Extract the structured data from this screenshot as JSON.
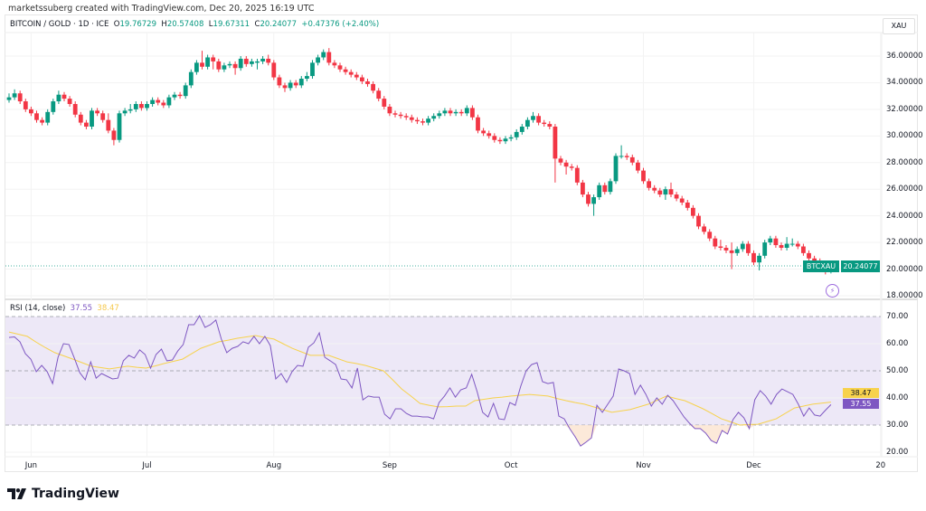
{
  "credit": "marketssuberg created with TradingView.com, Dec 20, 2025 16:19 UTC",
  "legend": {
    "symbol": "BITCOIN / GOLD · 1D · ICE",
    "o_label": "O",
    "o": "19.76729",
    "h_label": "H",
    "h": "20.57408",
    "l_label": "L",
    "l": "19.67311",
    "c_label": "C",
    "c": "20.24077",
    "change": "+0.47376 (+2.40%)"
  },
  "currency_badge": "XAU",
  "last_price": {
    "symbol": "BTCXAU",
    "value": "20.24077"
  },
  "logo_text": "TradingView",
  "colors": {
    "up": "#089981",
    "down": "#f23645",
    "rsi": "#7e57c2",
    "rsi_ma": "#f7d24c",
    "rsi_band": "#ede8f7"
  },
  "icons": [
    "tradingview-logo-icon",
    "lightning-icon"
  ],
  "chart_data": [
    {
      "type": "candlestick",
      "interval": "1D",
      "ylim": [
        18,
        37
      ],
      "y_ticks": [
        "36.00000",
        "34.00000",
        "32.00000",
        "30.00000",
        "28.00000",
        "26.00000",
        "24.00000",
        "22.00000",
        "20.00000",
        "18.00000"
      ],
      "y_tick_values": [
        36,
        34,
        32,
        30,
        28,
        26,
        24,
        22,
        20,
        18
      ],
      "x_ticks": [
        "Jun",
        "Jul",
        "Aug",
        "Sep",
        "Oct",
        "Nov",
        "Dec",
        "20"
      ],
      "x_tick_candle_index": [
        4,
        25,
        48,
        69,
        91,
        115,
        135,
        158
      ],
      "grid": true,
      "ohlc": [
        [
          32.7,
          33.2,
          32.5,
          32.9
        ],
        [
          32.9,
          33.5,
          32.7,
          33.2
        ],
        [
          33.2,
          33.4,
          32.4,
          32.6
        ],
        [
          32.6,
          32.8,
          31.8,
          32.0
        ],
        [
          32.0,
          32.2,
          31.5,
          31.7
        ],
        [
          31.7,
          31.9,
          31.0,
          31.2
        ],
        [
          31.2,
          31.4,
          30.8,
          31.0
        ],
        [
          31.0,
          32.0,
          30.8,
          31.8
        ],
        [
          31.8,
          32.8,
          31.6,
          32.6
        ],
        [
          32.6,
          33.4,
          32.4,
          33.1
        ],
        [
          33.1,
          33.3,
          32.6,
          32.8
        ],
        [
          32.8,
          33.0,
          32.2,
          32.4
        ],
        [
          32.4,
          32.6,
          31.4,
          31.6
        ],
        [
          31.6,
          31.8,
          30.8,
          31.0
        ],
        [
          31.0,
          31.2,
          30.5,
          30.7
        ],
        [
          30.7,
          32.1,
          30.5,
          31.9
        ],
        [
          31.9,
          32.1,
          31.5,
          31.7
        ],
        [
          31.7,
          31.9,
          31.0,
          31.2
        ],
        [
          31.2,
          31.7,
          30.2,
          30.4
        ],
        [
          30.4,
          30.6,
          29.3,
          29.7
        ],
        [
          29.7,
          31.9,
          29.5,
          31.7
        ],
        [
          31.7,
          32.1,
          31.5,
          31.9
        ],
        [
          31.9,
          32.4,
          31.7,
          32.0
        ],
        [
          32.0,
          32.6,
          31.8,
          32.4
        ],
        [
          32.4,
          32.6,
          31.9,
          32.1
        ],
        [
          32.1,
          32.6,
          31.9,
          32.4
        ],
        [
          32.4,
          32.9,
          32.2,
          32.7
        ],
        [
          32.7,
          32.9,
          32.3,
          32.5
        ],
        [
          32.5,
          32.7,
          32.1,
          32.3
        ],
        [
          32.3,
          33.1,
          32.1,
          32.9
        ],
        [
          32.9,
          33.3,
          32.7,
          33.1
        ],
        [
          33.1,
          33.3,
          32.8,
          33.0
        ],
        [
          33.0,
          34.0,
          32.8,
          33.8
        ],
        [
          33.8,
          35.0,
          33.6,
          34.8
        ],
        [
          34.8,
          35.7,
          34.6,
          35.5
        ],
        [
          35.5,
          36.4,
          35.0,
          35.2
        ],
        [
          35.2,
          36.1,
          35.0,
          35.9
        ],
        [
          35.9,
          36.1,
          35.0,
          35.6
        ],
        [
          35.6,
          35.8,
          34.8,
          35.0
        ],
        [
          35.0,
          35.5,
          34.8,
          35.3
        ],
        [
          35.3,
          35.6,
          35.1,
          35.4
        ],
        [
          35.4,
          35.6,
          34.6,
          35.1
        ],
        [
          35.1,
          36.0,
          34.9,
          35.8
        ],
        [
          35.8,
          36.0,
          35.2,
          35.4
        ],
        [
          35.4,
          35.8,
          35.2,
          35.6
        ],
        [
          35.5,
          35.8,
          35.0,
          35.6
        ],
        [
          35.6,
          36.0,
          35.4,
          35.8
        ],
        [
          35.8,
          36.1,
          35.3,
          35.5
        ],
        [
          35.5,
          35.7,
          34.2,
          34.4
        ],
        [
          34.4,
          34.6,
          33.6,
          33.8
        ],
        [
          33.8,
          34.0,
          33.3,
          33.6
        ],
        [
          33.6,
          34.2,
          33.4,
          34.0
        ],
        [
          34.0,
          34.2,
          33.6,
          33.8
        ],
        [
          33.8,
          34.5,
          33.6,
          34.3
        ],
        [
          34.3,
          34.8,
          34.1,
          34.5
        ],
        [
          34.5,
          35.7,
          34.3,
          35.5
        ],
        [
          35.5,
          36.1,
          35.3,
          35.9
        ],
        [
          35.9,
          36.5,
          35.7,
          36.3
        ],
        [
          36.3,
          36.6,
          35.3,
          35.5
        ],
        [
          35.5,
          35.7,
          35.1,
          35.3
        ],
        [
          35.3,
          35.5,
          34.8,
          35.0
        ],
        [
          35.0,
          35.2,
          34.6,
          34.8
        ],
        [
          34.8,
          35.0,
          34.4,
          34.6
        ],
        [
          34.6,
          34.8,
          34.2,
          34.4
        ],
        [
          34.4,
          34.6,
          33.9,
          34.1
        ],
        [
          34.1,
          34.3,
          33.7,
          33.9
        ],
        [
          33.9,
          34.1,
          33.2,
          33.4
        ],
        [
          33.4,
          33.6,
          32.6,
          32.8
        ],
        [
          32.8,
          33.0,
          32.0,
          32.2
        ],
        [
          32.2,
          32.4,
          31.5,
          31.7
        ],
        [
          31.7,
          31.9,
          31.4,
          31.6
        ],
        [
          31.6,
          31.8,
          31.3,
          31.5
        ],
        [
          31.5,
          31.7,
          31.2,
          31.4
        ],
        [
          31.4,
          31.6,
          31.0,
          31.2
        ],
        [
          31.2,
          31.4,
          30.9,
          31.1
        ],
        [
          31.1,
          31.3,
          30.8,
          31.0
        ],
        [
          31.0,
          31.5,
          30.8,
          31.3
        ],
        [
          31.3,
          31.7,
          31.1,
          31.5
        ],
        [
          31.5,
          31.9,
          31.3,
          31.7
        ],
        [
          31.7,
          32.1,
          31.5,
          31.9
        ],
        [
          31.9,
          32.1,
          31.5,
          31.7
        ],
        [
          31.7,
          32.0,
          31.5,
          31.8
        ],
        [
          31.8,
          32.0,
          31.5,
          31.7
        ],
        [
          31.7,
          32.3,
          31.5,
          32.1
        ],
        [
          32.1,
          32.3,
          31.2,
          31.4
        ],
        [
          31.4,
          31.6,
          30.2,
          30.4
        ],
        [
          30.4,
          30.6,
          30.0,
          30.2
        ],
        [
          30.2,
          30.4,
          29.8,
          30.0
        ],
        [
          30.0,
          30.2,
          29.5,
          29.7
        ],
        [
          29.7,
          29.9,
          29.4,
          29.6
        ],
        [
          29.6,
          30.0,
          29.4,
          29.8
        ],
        [
          29.8,
          30.1,
          29.6,
          29.9
        ],
        [
          29.9,
          30.5,
          29.7,
          30.3
        ],
        [
          30.3,
          30.9,
          30.1,
          30.7
        ],
        [
          30.7,
          31.4,
          30.5,
          31.2
        ],
        [
          31.2,
          31.8,
          31.0,
          31.5
        ],
        [
          31.5,
          31.7,
          30.8,
          31.0
        ],
        [
          31.0,
          31.2,
          30.7,
          30.9
        ],
        [
          30.9,
          31.1,
          30.5,
          30.7
        ],
        [
          30.7,
          30.9,
          26.5,
          28.3
        ],
        [
          28.3,
          28.5,
          27.8,
          28.0
        ],
        [
          28.0,
          28.2,
          27.1,
          27.7
        ],
        [
          27.7,
          27.9,
          27.4,
          27.6
        ],
        [
          27.6,
          27.8,
          26.3,
          26.5
        ],
        [
          26.5,
          26.7,
          25.4,
          25.6
        ],
        [
          25.6,
          25.8,
          24.7,
          24.9
        ],
        [
          24.9,
          25.6,
          24.0,
          25.4
        ],
        [
          25.4,
          26.5,
          25.2,
          26.3
        ],
        [
          26.3,
          26.5,
          25.6,
          25.8
        ],
        [
          25.8,
          26.8,
          25.6,
          26.6
        ],
        [
          26.6,
          28.7,
          26.4,
          28.5
        ],
        [
          28.5,
          29.3,
          28.3,
          28.5
        ],
        [
          28.5,
          28.7,
          28.2,
          28.4
        ],
        [
          28.4,
          28.6,
          27.8,
          28.0
        ],
        [
          28.0,
          28.2,
          27.2,
          27.4
        ],
        [
          27.4,
          27.6,
          26.4,
          26.6
        ],
        [
          26.6,
          26.8,
          25.9,
          26.1
        ],
        [
          26.1,
          26.3,
          25.7,
          25.9
        ],
        [
          25.9,
          26.1,
          25.4,
          25.6
        ],
        [
          25.6,
          26.2,
          25.2,
          26.0
        ],
        [
          26.0,
          26.5,
          25.4,
          25.6
        ],
        [
          25.6,
          25.8,
          25.1,
          25.3
        ],
        [
          25.3,
          25.5,
          24.8,
          25.0
        ],
        [
          25.0,
          25.2,
          24.4,
          24.6
        ],
        [
          24.6,
          24.8,
          23.8,
          24.0
        ],
        [
          24.0,
          24.2,
          23.0,
          23.2
        ],
        [
          23.2,
          23.4,
          22.6,
          22.8
        ],
        [
          22.8,
          23.0,
          22.1,
          22.3
        ],
        [
          22.3,
          22.5,
          21.5,
          21.7
        ],
        [
          21.7,
          22.2,
          21.4,
          21.6
        ],
        [
          21.6,
          21.8,
          21.2,
          21.4
        ],
        [
          21.4,
          22.0,
          20.0,
          21.2
        ],
        [
          21.2,
          21.7,
          21.0,
          21.5
        ],
        [
          21.5,
          22.1,
          21.3,
          21.9
        ],
        [
          21.9,
          22.1,
          21.0,
          21.2
        ],
        [
          21.2,
          21.4,
          20.3,
          20.5
        ],
        [
          20.5,
          21.2,
          19.9,
          21.0
        ],
        [
          21.0,
          22.2,
          20.8,
          22.0
        ],
        [
          22.0,
          22.5,
          21.8,
          22.3
        ],
        [
          22.3,
          22.5,
          21.6,
          21.8
        ],
        [
          21.8,
          22.0,
          21.4,
          21.6
        ],
        [
          21.6,
          22.4,
          21.4,
          21.9
        ],
        [
          21.9,
          22.3,
          21.7,
          21.9
        ],
        [
          21.9,
          22.1,
          21.5,
          21.7
        ],
        [
          21.7,
          21.9,
          21.0,
          21.2
        ],
        [
          21.2,
          21.4,
          20.5,
          20.8
        ],
        [
          20.8,
          21.0,
          20.3,
          20.6
        ],
        [
          20.6,
          20.8,
          19.8,
          20.2
        ],
        [
          20.2,
          20.6,
          19.6,
          19.77
        ],
        [
          19.76729,
          20.57408,
          19.67311,
          20.24077
        ]
      ]
    },
    {
      "type": "line",
      "title": "RSI (14, close)",
      "current_rsi": "37.55",
      "current_ma": "38.47",
      "ylim": [
        15,
        75
      ],
      "y_ticks": [
        "70.00",
        "60.00",
        "50.00",
        "40.00",
        "30.00",
        "20.00"
      ],
      "y_tick_values": [
        70,
        60,
        50,
        40,
        30,
        20
      ],
      "bands": {
        "upper": 70,
        "middle": 50,
        "lower": 30
      },
      "series": [
        {
          "values": [
            62.3,
            62.5,
            60.7,
            56.3,
            54.3,
            49.7,
            52,
            49.7,
            45.3,
            55,
            60,
            59.7,
            54.7,
            49.3,
            46.7,
            53.3,
            47.3,
            49,
            48,
            47,
            47.3,
            53.7,
            55.7,
            54.7,
            57.7,
            56,
            51,
            56,
            58,
            53.7,
            54,
            57.3,
            59.7,
            67,
            67,
            70.3,
            66,
            67,
            68.7,
            61.7,
            56.7,
            58.3,
            59,
            60.7,
            60,
            62.7,
            60,
            62.7,
            59.3,
            47,
            49,
            45.7,
            49.7,
            52,
            51.7,
            58.7,
            60.3,
            64,
            55,
            53.7,
            52.3,
            47,
            46.7,
            43.7,
            51,
            39.3,
            40.7,
            40.3,
            40.3,
            34,
            32.3,
            36,
            36,
            34.3,
            33.3,
            33.3,
            33,
            33,
            32.3,
            38.3,
            40.7,
            43.7,
            40.3,
            43,
            43.7,
            48.7,
            42.3,
            34.7,
            33,
            38,
            32.3,
            32,
            38.3,
            37.3,
            44.3,
            50,
            52.3,
            53,
            46,
            45.3,
            45.7,
            33.3,
            32.3,
            28.7,
            25.7,
            22.3,
            23.7,
            25.3,
            37.3,
            34.7,
            37.7,
            40.7,
            50.7,
            50,
            49,
            41.3,
            44.7,
            41.3,
            37,
            40,
            37.7,
            41,
            39,
            36,
            33,
            30.7,
            28.7,
            28.7,
            27,
            24.3,
            23.3,
            28,
            26.7,
            32,
            34.7,
            32.7,
            28.7,
            39.3,
            42.7,
            40.7,
            37.7,
            41.3,
            43.3,
            42.3,
            41.3,
            37.7,
            33.3,
            36.3,
            33.7,
            33.3,
            35.5,
            37.55
          ]
        },
        {
          "values": [
            64.3,
            63.5,
            62.7,
            60.5,
            58.5,
            56.7,
            55.5,
            54.3,
            53,
            51.7,
            51.2,
            50.7,
            51.2,
            51.7,
            51.3,
            51,
            51.8,
            52.7,
            53.5,
            54.3,
            56.3,
            58.3,
            59.5,
            60.7,
            61.3,
            62,
            62.5,
            63,
            62.3,
            61.7,
            60,
            58.3,
            57,
            55.7,
            55.7,
            55.7,
            54.5,
            53.3,
            52.7,
            52,
            51,
            50,
            46.7,
            43.3,
            40.7,
            38,
            37.3,
            36.7,
            36.8,
            37,
            37,
            39,
            39.5,
            40,
            40.3,
            40.7,
            41,
            41.3,
            41,
            40.7,
            39.8,
            39,
            38.3,
            37.7,
            36.7,
            35.7,
            34.7,
            35.2,
            35.7,
            36.7,
            37.7,
            39.2,
            40.7,
            39.8,
            39,
            37.5,
            36,
            34.2,
            32.3,
            31.2,
            30,
            30.2,
            30.3,
            31.3,
            32.3,
            34.3,
            36.3,
            37,
            37.7,
            38.1,
            38.47
          ]
        }
      ]
    }
  ]
}
